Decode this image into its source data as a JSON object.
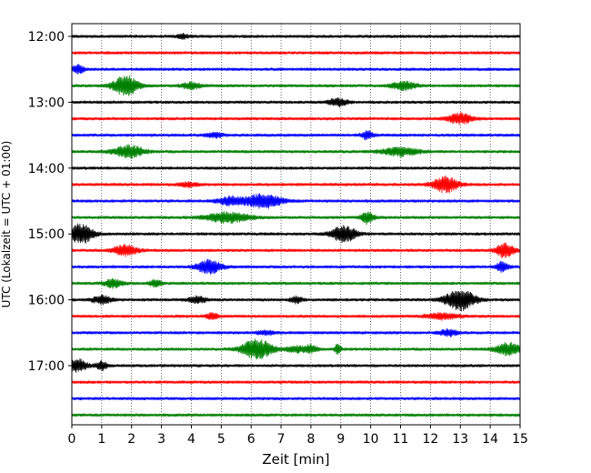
{
  "chart_data": {
    "type": "line",
    "title": "",
    "xlabel": "Zeit  [min]",
    "ylabel": "UTC (Lokalzeit = UTC + 01:00)",
    "xlim": [
      0,
      15
    ],
    "x_ticks": [
      "0",
      "1",
      "2",
      "3",
      "4",
      "5",
      "6",
      "7",
      "8",
      "9",
      "10",
      "11",
      "12",
      "13",
      "14",
      "15"
    ],
    "y_ticks": [
      "12:00",
      "13:00",
      "14:00",
      "15:00",
      "16:00",
      "17:00"
    ],
    "grid": "vertical dotted at each minute",
    "legend": "none",
    "row_interval_min": 15,
    "row_colors": [
      "#000000",
      "#ff0000",
      "#0000ff",
      "#008000"
    ],
    "series": [
      {
        "start": "12:00",
        "bursts": [
          [
            3.7,
            0.2,
            0.2
          ]
        ]
      },
      {
        "start": "12:15",
        "bursts": []
      },
      {
        "start": "12:30",
        "bursts": [
          [
            0.2,
            0.2,
            0.4
          ]
        ]
      },
      {
        "start": "12:45",
        "bursts": [
          [
            1.8,
            0.4,
            1.0
          ],
          [
            4.0,
            0.3,
            0.3
          ],
          [
            11.1,
            0.4,
            0.4
          ]
        ]
      },
      {
        "start": "13:00",
        "bursts": [
          [
            8.9,
            0.3,
            0.4
          ]
        ]
      },
      {
        "start": "13:15",
        "bursts": [
          [
            13.0,
            0.4,
            0.5
          ]
        ]
      },
      {
        "start": "13:30",
        "bursts": [
          [
            9.9,
            0.2,
            0.4
          ],
          [
            4.8,
            0.3,
            0.2
          ]
        ]
      },
      {
        "start": "13:45",
        "bursts": [
          [
            1.9,
            0.5,
            0.6
          ],
          [
            11.0,
            0.6,
            0.4
          ]
        ]
      },
      {
        "start": "14:00",
        "bursts": []
      },
      {
        "start": "14:15",
        "bursts": [
          [
            12.5,
            0.4,
            0.8
          ],
          [
            3.9,
            0.3,
            0.2
          ]
        ]
      },
      {
        "start": "14:30",
        "bursts": [
          [
            6.4,
            0.6,
            0.7
          ],
          [
            5.3,
            0.4,
            0.4
          ]
        ]
      },
      {
        "start": "14:45",
        "bursts": [
          [
            5.2,
            0.7,
            0.5
          ],
          [
            9.9,
            0.2,
            0.6
          ]
        ]
      },
      {
        "start": "15:00",
        "bursts": [
          [
            0.3,
            0.4,
            1.0
          ],
          [
            9.1,
            0.4,
            0.8
          ]
        ]
      },
      {
        "start": "15:15",
        "bursts": [
          [
            1.8,
            0.4,
            0.5
          ],
          [
            14.5,
            0.3,
            0.7
          ]
        ]
      },
      {
        "start": "15:30",
        "bursts": [
          [
            4.6,
            0.4,
            0.7
          ],
          [
            14.4,
            0.2,
            0.5
          ]
        ]
      },
      {
        "start": "15:45",
        "bursts": [
          [
            1.4,
            0.3,
            0.4
          ],
          [
            2.8,
            0.2,
            0.3
          ]
        ]
      },
      {
        "start": "16:00",
        "bursts": [
          [
            13.0,
            0.5,
            1.0
          ],
          [
            1.0,
            0.3,
            0.4
          ],
          [
            4.2,
            0.3,
            0.3
          ],
          [
            7.5,
            0.2,
            0.3
          ]
        ]
      },
      {
        "start": "16:15",
        "bursts": [
          [
            4.7,
            0.2,
            0.3
          ],
          [
            12.4,
            0.5,
            0.3
          ]
        ]
      },
      {
        "start": "16:30",
        "bursts": [
          [
            12.6,
            0.3,
            0.3
          ],
          [
            6.5,
            0.3,
            0.2
          ]
        ]
      },
      {
        "start": "16:45",
        "bursts": [
          [
            6.2,
            0.5,
            1.0
          ],
          [
            14.6,
            0.4,
            0.6
          ],
          [
            8.0,
            0.2,
            0.4
          ],
          [
            8.9,
            0.1,
            0.5
          ],
          [
            7.5,
            0.3,
            0.3
          ]
        ]
      },
      {
        "start": "17:00",
        "bursts": [
          [
            0.2,
            0.3,
            0.6
          ],
          [
            1.0,
            0.2,
            0.4
          ]
        ]
      },
      {
        "start": "17:15",
        "bursts": []
      },
      {
        "start": "17:30",
        "bursts": []
      },
      {
        "start": "17:45",
        "bursts": []
      }
    ]
  }
}
